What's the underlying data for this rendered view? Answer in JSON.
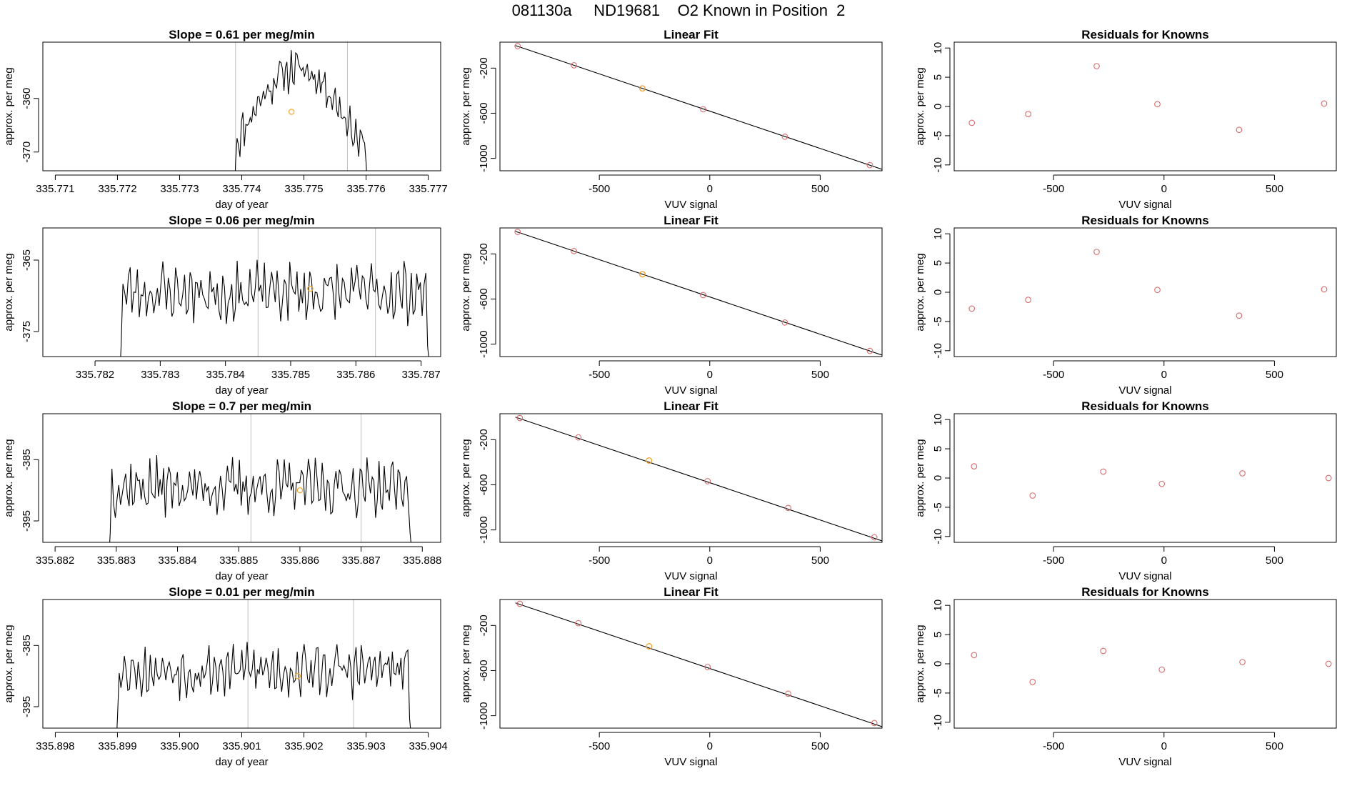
{
  "page_title": "081130a     ND19681    O2 Known in Position  2",
  "colors": {
    "trace": "#000000",
    "vline": "#bebebe",
    "point": "#d96b6b",
    "highlight": "#f5a623",
    "axis": "#000000"
  },
  "chart_data": [
    {
      "type": "line",
      "row": 0,
      "col": 0,
      "title": "Slope =  0.61  per meg/min",
      "xlabel": "day of year",
      "ylabel": "approx. per meg",
      "xlim": [
        335.7708,
        335.7772
      ],
      "ylim": [
        -373.5,
        -349.5
      ],
      "xticks": [
        335.771,
        335.772,
        335.773,
        335.774,
        335.775,
        335.776,
        335.777
      ],
      "xtick_labels": [
        "335.771",
        "335.772",
        "335.773",
        "335.774",
        "335.775",
        "335.776",
        "335.777"
      ],
      "yticks": [
        -360,
        -370
      ],
      "ytick_labels": [
        "-360",
        "-370"
      ],
      "vlines": [
        335.7739,
        335.7757
      ],
      "marker": [
        335.7748,
        -362.5
      ],
      "series": {
        "xstart": 335.7739,
        "xend": 335.776,
        "n": 90,
        "base": -368.5,
        "amp": 14.0,
        "noise": 3.0,
        "shape": "hump",
        "tail": -374.0,
        "seed": 11
      }
    },
    {
      "type": "scatter",
      "row": 0,
      "col": 1,
      "title": "Linear Fit",
      "xlabel": "VUV signal",
      "ylabel": "approx. per meg",
      "xlim": [
        -950,
        780
      ],
      "ylim": [
        -1110,
        30
      ],
      "xticks": [
        -500,
        0,
        500
      ],
      "xtick_labels": [
        "-500",
        "0",
        "500"
      ],
      "yticks": [
        -200,
        -600,
        -1000
      ],
      "ytick_labels": [
        "-200",
        "-600",
        "-1000"
      ],
      "fit": [
        [
          -880,
          0
        ],
        [
          780,
          -1097
        ]
      ],
      "points": [
        [
          -870,
          -5
        ],
        [
          -615,
          -175
        ],
        [
          -305,
          -380
        ],
        [
          -30,
          -565
        ],
        [
          340,
          -808
        ],
        [
          725,
          -1060
        ]
      ],
      "highlight_index": 2
    },
    {
      "type": "scatter",
      "row": 0,
      "col": 2,
      "title": "Residuals for Knowns",
      "xlabel": "VUV signal",
      "ylabel": "approx. per meg",
      "xlim": [
        -950,
        780
      ],
      "ylim": [
        -11,
        11
      ],
      "xticks": [
        -500,
        0,
        500
      ],
      "xtick_labels": [
        "-500",
        "0",
        "500"
      ],
      "yticks": [
        10,
        5,
        0,
        -5,
        -10
      ],
      "ytick_labels": [
        "10",
        "5",
        "0",
        "-5",
        "-10"
      ],
      "points": [
        [
          -870,
          -2.8
        ],
        [
          -615,
          -1.3
        ],
        [
          -305,
          6.9
        ],
        [
          -30,
          0.4
        ],
        [
          340,
          -4.0
        ],
        [
          725,
          0.5
        ]
      ]
    },
    {
      "type": "line",
      "row": 1,
      "col": 0,
      "title": "Slope =  0.06  per meg/min",
      "xlabel": "day of year",
      "ylabel": "approx. per meg",
      "xlim": [
        335.7812,
        335.7873
      ],
      "ylim": [
        -378.5,
        -360.5
      ],
      "xticks": [
        335.782,
        335.783,
        335.784,
        335.785,
        335.786,
        335.787
      ],
      "xtick_labels": [
        "335.782",
        "335.783",
        "335.784",
        "335.785",
        "335.786",
        "335.787"
      ],
      "yticks": [
        -365,
        -375
      ],
      "ytick_labels": [
        "-365",
        "-375"
      ],
      "vlines": [
        335.7845,
        335.7863
      ],
      "marker": [
        335.7853,
        -369.0
      ],
      "series": {
        "xstart": 335.7824,
        "xend": 335.7871,
        "n": 170,
        "base": -369.5,
        "amp": 0,
        "noise": 3.3,
        "shape": "flat",
        "tail": -379.0,
        "seed": 23
      }
    },
    {
      "type": "scatter",
      "row": 1,
      "col": 1,
      "title": "Linear Fit",
      "xlabel": "VUV signal",
      "ylabel": "approx. per meg",
      "xlim": [
        -950,
        780
      ],
      "ylim": [
        -1110,
        30
      ],
      "xticks": [
        -500,
        0,
        500
      ],
      "xtick_labels": [
        "-500",
        "0",
        "500"
      ],
      "yticks": [
        -200,
        -600,
        -1000
      ],
      "ytick_labels": [
        "-200",
        "-600",
        "-1000"
      ],
      "fit": [
        [
          -880,
          0
        ],
        [
          780,
          -1097
        ]
      ],
      "points": [
        [
          -870,
          -5
        ],
        [
          -615,
          -175
        ],
        [
          -305,
          -380
        ],
        [
          -30,
          -565
        ],
        [
          340,
          -808
        ],
        [
          725,
          -1060
        ]
      ],
      "highlight_index": 2
    },
    {
      "type": "scatter",
      "row": 1,
      "col": 2,
      "title": "Residuals for Knowns",
      "xlabel": "VUV signal",
      "ylabel": "approx. per meg",
      "xlim": [
        -950,
        780
      ],
      "ylim": [
        -11,
        11
      ],
      "xticks": [
        -500,
        0,
        500
      ],
      "xtick_labels": [
        "-500",
        "0",
        "500"
      ],
      "yticks": [
        10,
        5,
        0,
        -5,
        -10
      ],
      "ytick_labels": [
        "10",
        "5",
        "0",
        "-5",
        "-10"
      ],
      "points": [
        [
          -870,
          -2.8
        ],
        [
          -615,
          -1.3
        ],
        [
          -305,
          6.9
        ],
        [
          -30,
          0.4
        ],
        [
          340,
          -4.0
        ],
        [
          725,
          0.5
        ]
      ]
    },
    {
      "type": "line",
      "row": 2,
      "col": 0,
      "title": "Slope =  0.7  per meg/min",
      "xlabel": "day of year",
      "ylabel": "approx. per meg",
      "xlim": [
        335.8818,
        335.8883
      ],
      "ylim": [
        -398.5,
        -377.5
      ],
      "xticks": [
        335.882,
        335.883,
        335.884,
        335.885,
        335.886,
        335.887,
        335.888
      ],
      "xtick_labels": [
        "335.882",
        "335.883",
        "335.884",
        "335.885",
        "335.886",
        "335.887",
        "335.888"
      ],
      "yticks": [
        -385,
        -395
      ],
      "ytick_labels": [
        "-385",
        "-395"
      ],
      "vlines": [
        335.8852,
        335.887
      ],
      "marker": [
        335.886,
        -390.0
      ],
      "series": {
        "xstart": 335.8829,
        "xend": 335.8878,
        "n": 175,
        "base": -389.5,
        "amp": 0,
        "noise": 3.6,
        "shape": "flat",
        "tail": -399.0,
        "seed": 37
      }
    },
    {
      "type": "scatter",
      "row": 2,
      "col": 1,
      "title": "Linear Fit",
      "xlabel": "VUV signal",
      "ylabel": "approx. per meg",
      "xlim": [
        -950,
        780
      ],
      "ylim": [
        -1110,
        30
      ],
      "xticks": [
        -500,
        0,
        500
      ],
      "xtick_labels": [
        "-500",
        "0",
        "500"
      ],
      "yticks": [
        -200,
        -600,
        -1000
      ],
      "ytick_labels": [
        "-200",
        "-600",
        "-1000"
      ],
      "fit": [
        [
          -880,
          0
        ],
        [
          780,
          -1097
        ]
      ],
      "points": [
        [
          -860,
          -8
        ],
        [
          -595,
          -180
        ],
        [
          -275,
          -385
        ],
        [
          -10,
          -568
        ],
        [
          355,
          -805
        ],
        [
          745,
          -1065
        ]
      ],
      "highlight_index": 2
    },
    {
      "type": "scatter",
      "row": 2,
      "col": 2,
      "title": "Residuals for Knowns",
      "xlabel": "VUV signal",
      "ylabel": "approx. per meg",
      "xlim": [
        -950,
        780
      ],
      "ylim": [
        -11,
        11
      ],
      "xticks": [
        -500,
        0,
        500
      ],
      "xtick_labels": [
        "-500",
        "0",
        "500"
      ],
      "yticks": [
        10,
        5,
        0,
        -5,
        -10
      ],
      "ytick_labels": [
        "10",
        "5",
        "0",
        "-5",
        "-10"
      ],
      "points": [
        [
          -860,
          2.0
        ],
        [
          -595,
          -3.0
        ],
        [
          -275,
          1.1
        ],
        [
          -10,
          -1.0
        ],
        [
          355,
          0.8
        ],
        [
          745,
          0.0
        ]
      ]
    },
    {
      "type": "line",
      "row": 3,
      "col": 0,
      "title": "Slope =  0.01  per meg/min",
      "xlabel": "day of year",
      "ylabel": "approx. per meg",
      "xlim": [
        335.8978,
        335.9042
      ],
      "ylim": [
        -398.5,
        -377.5
      ],
      "xticks": [
        335.898,
        335.899,
        335.9,
        335.901,
        335.902,
        335.903,
        335.904
      ],
      "xtick_labels": [
        "335.898",
        "335.899",
        "335.900",
        "335.901",
        "335.902",
        "335.903",
        "335.904"
      ],
      "yticks": [
        -385,
        -395
      ],
      "ytick_labels": [
        "-385",
        "-395"
      ],
      "vlines": [
        335.9011,
        335.9028
      ],
      "marker": [
        335.9019,
        -390.0
      ],
      "series": {
        "xstart": 335.899,
        "xend": 335.9037,
        "n": 170,
        "base": -389.0,
        "amp": 0,
        "noise": 3.4,
        "shape": "flat",
        "tail": -399.0,
        "seed": 53
      }
    },
    {
      "type": "scatter",
      "row": 3,
      "col": 1,
      "title": "Linear Fit",
      "xlabel": "VUV signal",
      "ylabel": "approx. per meg",
      "xlim": [
        -950,
        780
      ],
      "ylim": [
        -1110,
        30
      ],
      "xticks": [
        -500,
        0,
        500
      ],
      "xtick_labels": [
        "-500",
        "0",
        "500"
      ],
      "yticks": [
        -200,
        -600,
        -1000
      ],
      "ytick_labels": [
        "-200",
        "-600",
        "-1000"
      ],
      "fit": [
        [
          -880,
          0
        ],
        [
          780,
          -1097
        ]
      ],
      "points": [
        [
          -860,
          -8
        ],
        [
          -595,
          -180
        ],
        [
          -275,
          -385
        ],
        [
          -10,
          -568
        ],
        [
          355,
          -805
        ],
        [
          745,
          -1065
        ]
      ],
      "highlight_index": 2
    },
    {
      "type": "scatter",
      "row": 3,
      "col": 2,
      "title": "Residuals for Knowns",
      "xlabel": "VUV signal",
      "ylabel": "approx. per meg",
      "xlim": [
        -950,
        780
      ],
      "ylim": [
        -11,
        11
      ],
      "xticks": [
        -500,
        0,
        500
      ],
      "xtick_labels": [
        "-500",
        "0",
        "500"
      ],
      "yticks": [
        10,
        5,
        0,
        -5,
        -10
      ],
      "ytick_labels": [
        "10",
        "5",
        "0",
        "-5",
        "-10"
      ],
      "points": [
        [
          -860,
          1.5
        ],
        [
          -595,
          -3.1
        ],
        [
          -275,
          2.2
        ],
        [
          -10,
          -1.0
        ],
        [
          355,
          0.3
        ],
        [
          745,
          0.0
        ]
      ]
    }
  ]
}
